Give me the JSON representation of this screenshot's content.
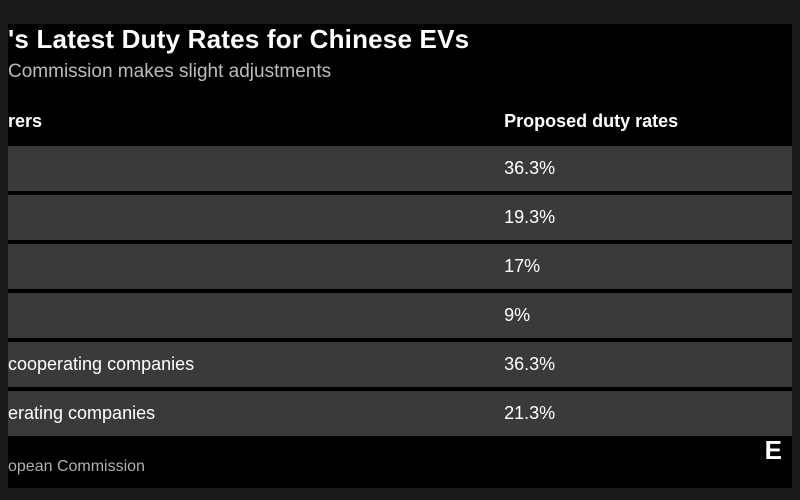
{
  "header": {
    "title": "'s Latest Duty Rates for Chinese EVs",
    "subtitle": "Commission makes slight adjustments"
  },
  "table": {
    "type": "table",
    "background_color": "#000000",
    "row_background": "#3a3a3a",
    "row_gap_color": "#000000",
    "text_color": "#ffffff",
    "header_fontsize": 18,
    "cell_fontsize": 18,
    "columns": [
      {
        "key": "man",
        "label": "rers",
        "width_pct": 62,
        "align": "left"
      },
      {
        "key": "rate",
        "label": "Proposed duty rates",
        "width_pct": 38,
        "align": "left"
      }
    ],
    "rows": [
      {
        "man": "",
        "rate": "36.3%"
      },
      {
        "man": "",
        "rate": "19.3%"
      },
      {
        "man": "",
        "rate": "17%"
      },
      {
        "man": "",
        "rate": "9%"
      },
      {
        "man": "cooperating companies",
        "rate": "36.3%"
      },
      {
        "man": "erating companies",
        "rate": "21.3%"
      }
    ]
  },
  "footer": {
    "source": "opean Commission",
    "brand": "E"
  },
  "style": {
    "outer_background": "#1a1a1a",
    "inner_background": "#000000",
    "title_color": "#ffffff",
    "subtitle_color": "#bcbcbc",
    "source_color": "#b0b0b0",
    "title_fontsize": 26,
    "subtitle_fontsize": 19,
    "source_fontsize": 16
  }
}
